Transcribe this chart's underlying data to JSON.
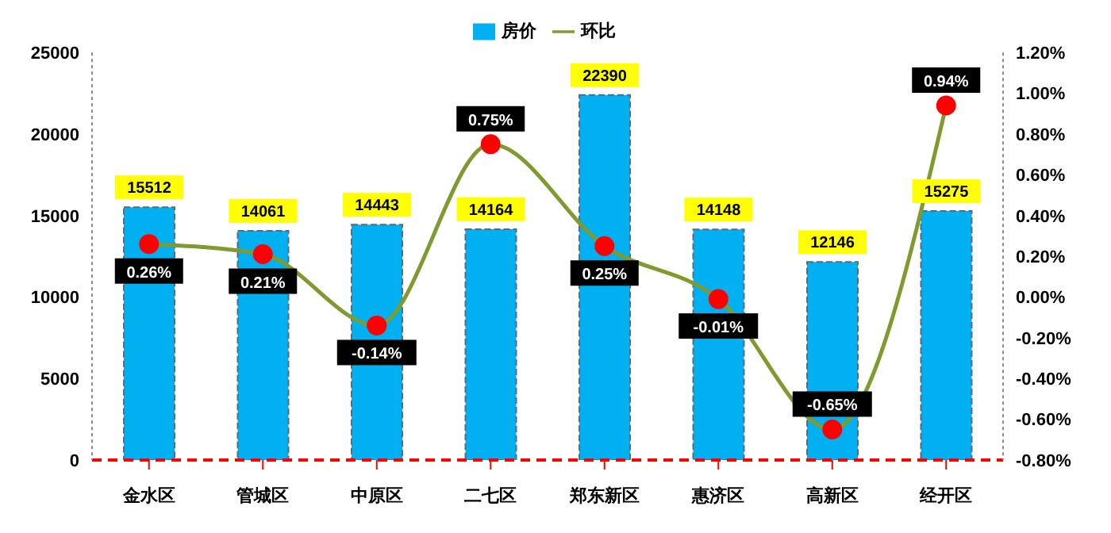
{
  "chart_data": {
    "type": "bar",
    "categories": [
      "金水区",
      "管城区",
      "中原区",
      "二七区",
      "郑东新区",
      "惠济区",
      "高新区",
      "经开区"
    ],
    "series": [
      {
        "name": "房价",
        "color": "#00b0f0",
        "values": [
          15512,
          14061,
          14443,
          14164,
          22390,
          14148,
          12146,
          15275
        ],
        "value_labels": [
          "15512",
          "14061",
          "14443",
          "14164",
          "22390",
          "14148",
          "12146",
          "15275"
        ]
      },
      {
        "name": "环比",
        "type": "line",
        "axis": "y2",
        "color": "#7f9a2e",
        "marker": "circle",
        "values": [
          0.26,
          0.21,
          -0.14,
          0.75,
          0.25,
          -0.01,
          -0.65,
          0.94
        ],
        "value_labels": [
          "0.26%",
          "0.21%",
          "-0.14%",
          "0.75%",
          "0.25%",
          "-0.01%",
          "-0.65%",
          "0.94%"
        ]
      }
    ],
    "ylim": [
      0,
      25000
    ],
    "yticks": [
      0,
      5000,
      10000,
      15000,
      20000,
      25000
    ],
    "y2lim": [
      -0.8,
      1.2
    ],
    "y2ticks": [
      {
        "value": -0.8,
        "label": "-0.80%"
      },
      {
        "value": -0.6,
        "label": "-0.60%"
      },
      {
        "value": -0.4,
        "label": "-0.40%"
      },
      {
        "value": -0.2,
        "label": "-0.20%"
      },
      {
        "value": 0,
        "label": "0.00%"
      },
      {
        "value": 0.2,
        "label": "0.20%"
      },
      {
        "value": 0.4,
        "label": "0.40%"
      },
      {
        "value": 0.6,
        "label": "0.60%"
      },
      {
        "value": 0.8,
        "label": "0.80%"
      },
      {
        "value": 1.0,
        "label": "1.00%"
      },
      {
        "value": 1.2,
        "label": "1.20%"
      }
    ],
    "grid": false,
    "legend": "top"
  }
}
